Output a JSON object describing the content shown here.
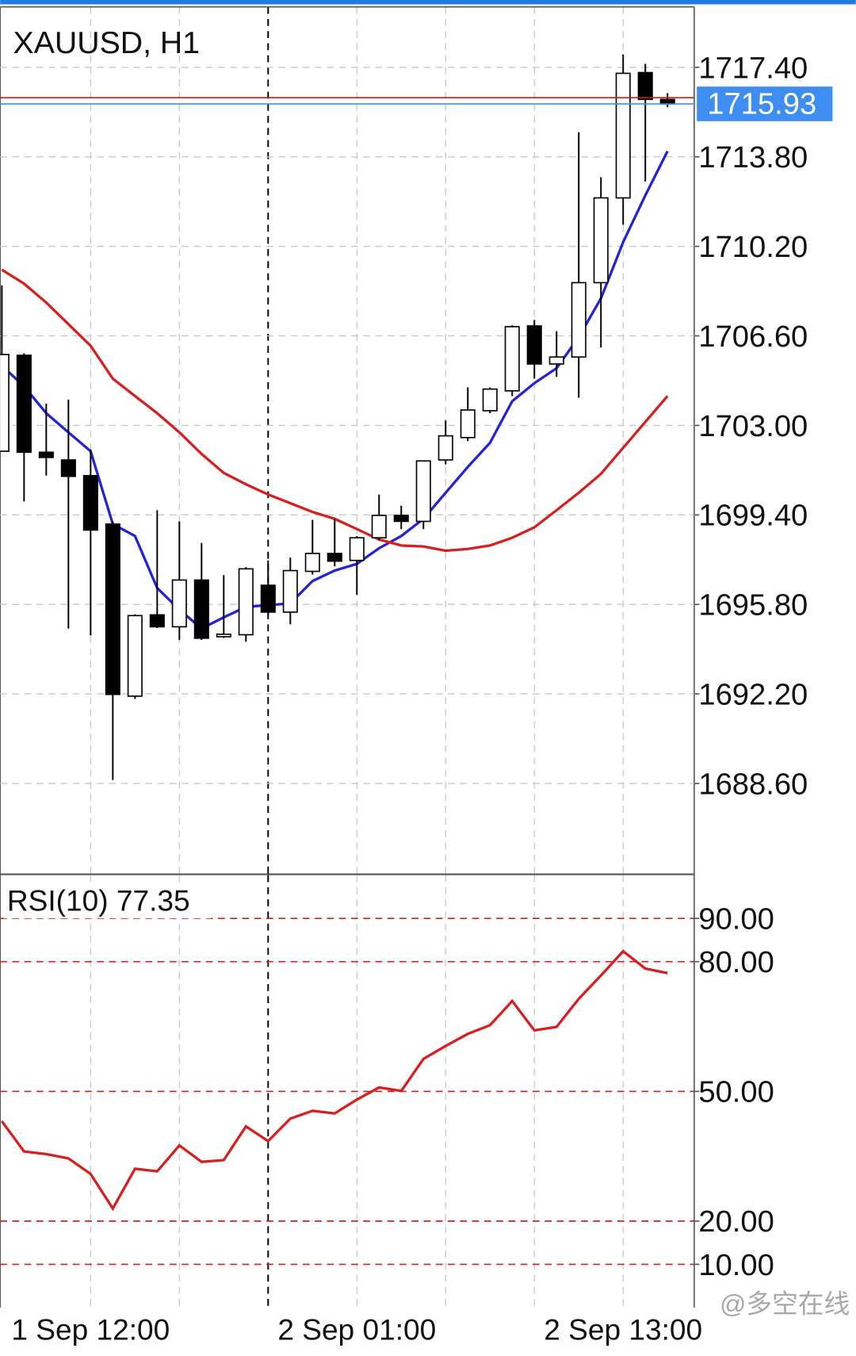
{
  "chart_data": [
    {
      "type": "candlestick",
      "title": "XAUUSD, H1",
      "categories": [
        null,
        null,
        null,
        null,
        "1 Sep 12:00",
        null,
        null,
        null,
        null,
        null,
        null,
        null,
        null,
        null,
        null,
        null,
        "2 Sep 01:00",
        null,
        null,
        null,
        null,
        null,
        null,
        null,
        null,
        null,
        null,
        null,
        "2 Sep 13:00",
        null,
        null
      ],
      "open": [
        1701.96,
        1705.82,
        1701.92,
        1701.61,
        1700.98,
        1699.03,
        1692.11,
        1695.38,
        1694.9,
        1696.78,
        1694.5,
        1694.58,
        1696.57,
        1695.49,
        1697.13,
        1697.85,
        1697.57,
        1698.48,
        1699.38,
        1699.14,
        1701.61,
        1702.51,
        1703.59,
        1704.39,
        1707.0,
        1705.47,
        1705.75,
        1708.74,
        1712.15,
        1717.19,
        1716.11
      ],
      "high": [
        1708.63,
        1705.9,
        1703.87,
        1704.04,
        1702.03,
        1699.14,
        1695.4,
        1699.59,
        1699.14,
        1698.27,
        1696.98,
        1697.3,
        1697.57,
        1697.68,
        1699.2,
        1699.24,
        1698.55,
        1700.22,
        1699.77,
        1701.6,
        1703.2,
        1704.53,
        1704.53,
        1707.03,
        1707.24,
        1706.79,
        1714.79,
        1712.98,
        1717.92,
        1717.54,
        1716.36
      ],
      "low": [
        1701.96,
        1699.94,
        1700.98,
        1694.83,
        1694.55,
        1688.74,
        1692.0,
        1694.85,
        1694.37,
        1694.37,
        1694.45,
        1694.3,
        1695.35,
        1695.0,
        1697.0,
        1697.33,
        1696.18,
        1698.37,
        1698.83,
        1698.83,
        1701.43,
        1702.37,
        1703.49,
        1704.18,
        1704.88,
        1704.95,
        1704.11,
        1706.13,
        1711.07,
        1712.81,
        1715.8
      ],
      "close": [
        1705.85,
        1701.92,
        1701.71,
        1700.95,
        1698.79,
        1692.18,
        1695.35,
        1694.9,
        1696.78,
        1694.44,
        1694.6,
        1697.23,
        1695.49,
        1697.16,
        1697.85,
        1697.54,
        1698.48,
        1699.38,
        1699.14,
        1701.57,
        1702.58,
        1703.62,
        1704.46,
        1706.97,
        1705.47,
        1705.75,
        1708.74,
        1712.15,
        1717.16,
        1716.11,
        1715.93
      ],
      "up_color": "#ffffff",
      "down_color": "#000000",
      "series": [
        {
          "color": "#2323d8",
          "values": [
            1705.4,
            1704.57,
            1703.49,
            1702.72,
            1701.96,
            1699.03,
            1698.55,
            1696.46,
            1695.59,
            1694.83,
            1695.28,
            1695.7,
            1695.77,
            1695.84,
            1696.74,
            1697.16,
            1697.43,
            1698.06,
            1698.55,
            1699.24,
            1700.29,
            1701.33,
            1702.3,
            1703.97,
            1704.7,
            1705.3,
            1706.55,
            1708.11,
            1710.37,
            1712.25,
            1714.03
          ]
        },
        {
          "color": "#d81e1e",
          "values": [
            1709.26,
            1708.7,
            1707.94,
            1707.07,
            1706.2,
            1704.88,
            1704.18,
            1703.49,
            1702.72,
            1701.85,
            1701.09,
            1700.63,
            1700.22,
            1699.87,
            1699.52,
            1699.24,
            1698.83,
            1698.41,
            1698.17,
            1698.13,
            1697.96,
            1698.03,
            1698.17,
            1698.48,
            1698.9,
            1699.59,
            1700.29,
            1701.05,
            1702.1,
            1703.14,
            1704.18
          ]
        }
      ],
      "bid": 1715.93,
      "bid_color": "#3d8ef0",
      "ask": 1716.18,
      "ask_color": "#e01010",
      "ylim": [
        1684.98,
        1719.83
      ],
      "yticks": [
        {
          "value": 1717.4,
          "label": "1717.40"
        },
        {
          "value": 1713.8,
          "label": "1713.80"
        },
        {
          "value": 1710.2,
          "label": "1710.20"
        },
        {
          "value": 1706.6,
          "label": "1706.60"
        },
        {
          "value": 1703,
          "label": "1703.00"
        },
        {
          "value": 1699.4,
          "label": "1699.40"
        },
        {
          "value": 1695.8,
          "label": "1695.80"
        },
        {
          "value": 1692.2,
          "label": "1692.20"
        },
        {
          "value": 1688.6,
          "label": "1688.60"
        }
      ],
      "grid": true
    },
    {
      "type": "line",
      "title": "RSI(10) 77.35",
      "color": "#d81e1e",
      "values": [
        43.1,
        36.1,
        35.5,
        34.5,
        30.9,
        22.9,
        32.1,
        31.5,
        37.5,
        33.7,
        34.1,
        41.9,
        38.5,
        43.7,
        45.5,
        44.9,
        48.1,
        50.9,
        50.1,
        57.5,
        60.5,
        63.3,
        65.3,
        70.9,
        64.1,
        64.9,
        71.4,
        76.8,
        82.4,
        78.4,
        77.35
      ],
      "ylim": [
        0,
        100
      ],
      "yticks": [
        {
          "value": 90,
          "label": "90.00"
        },
        {
          "value": 80,
          "label": "80.00"
        },
        {
          "value": 50,
          "label": "50.00"
        },
        {
          "value": 20,
          "label": "20.00"
        },
        {
          "value": 10,
          "label": "10.00"
        }
      ],
      "grid": true
    }
  ],
  "watermark": "@多空在线"
}
